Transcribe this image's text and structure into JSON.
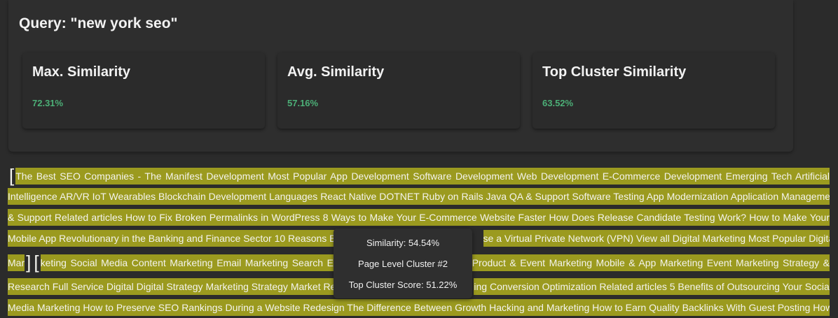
{
  "query": {
    "title": "Query: \"new york seo\""
  },
  "metrics": [
    {
      "label": "Max. Similarity",
      "value": "72.31%"
    },
    {
      "label": "Avg. Similarity",
      "value": "57.16%"
    },
    {
      "label": "Top Cluster Similarity",
      "value": "63.52%"
    }
  ],
  "text_lines": [
    "The Best SEO Companies - The Manifest Development Most Popular App Development Software Development Web Development E-Commerce Development Emerging Tech Artificial",
    "Intelligence AR/VR IoT Wearables Blockchain Development Languages React Native DOTNET Ruby on Rails Java QA & Support Software Testing App Modernization Application Management",
    "& Support Related articles How to Fix Broken Permalinks in WordPress 8 Ways to Make Your E-Commerce Website Faster How Does Release Candidate Testing Work? How to Make Your",
    "Mobile App Revolutionary in the Banking and Finance Sector 10 Reasons B",
    "se a Virtual Private Network (VPN) View all Digital Marketing Most Popular Digital",
    "Mar",
    "keting Social Media Content Marketing Email Marketing Search En",
    "Product & Event Marketing Mobile & App Marketing Event Marketing Strategy &",
    "Research Full Service Digital Digital Strategy Marketing Strategy Market Res",
    "ing Conversion Optimization Related articles 5 Benefits of Outsourcing Your Social",
    "Media Marketing How to Preserve SEO Rankings During a Website Redesign The Difference Between Growth Hacking and Marketing How to Earn Quality Backlinks With Guest Posting How"
  ],
  "tooltip": {
    "similarity": "Similarity: 54.54%",
    "cluster": "Page Level Cluster #2",
    "top_cluster_score": "Top Cluster Score: 51.22%"
  },
  "colors": {
    "highlight": "#9b9a1f",
    "value_green": "#4caf77",
    "background": "#2b2b2b"
  }
}
